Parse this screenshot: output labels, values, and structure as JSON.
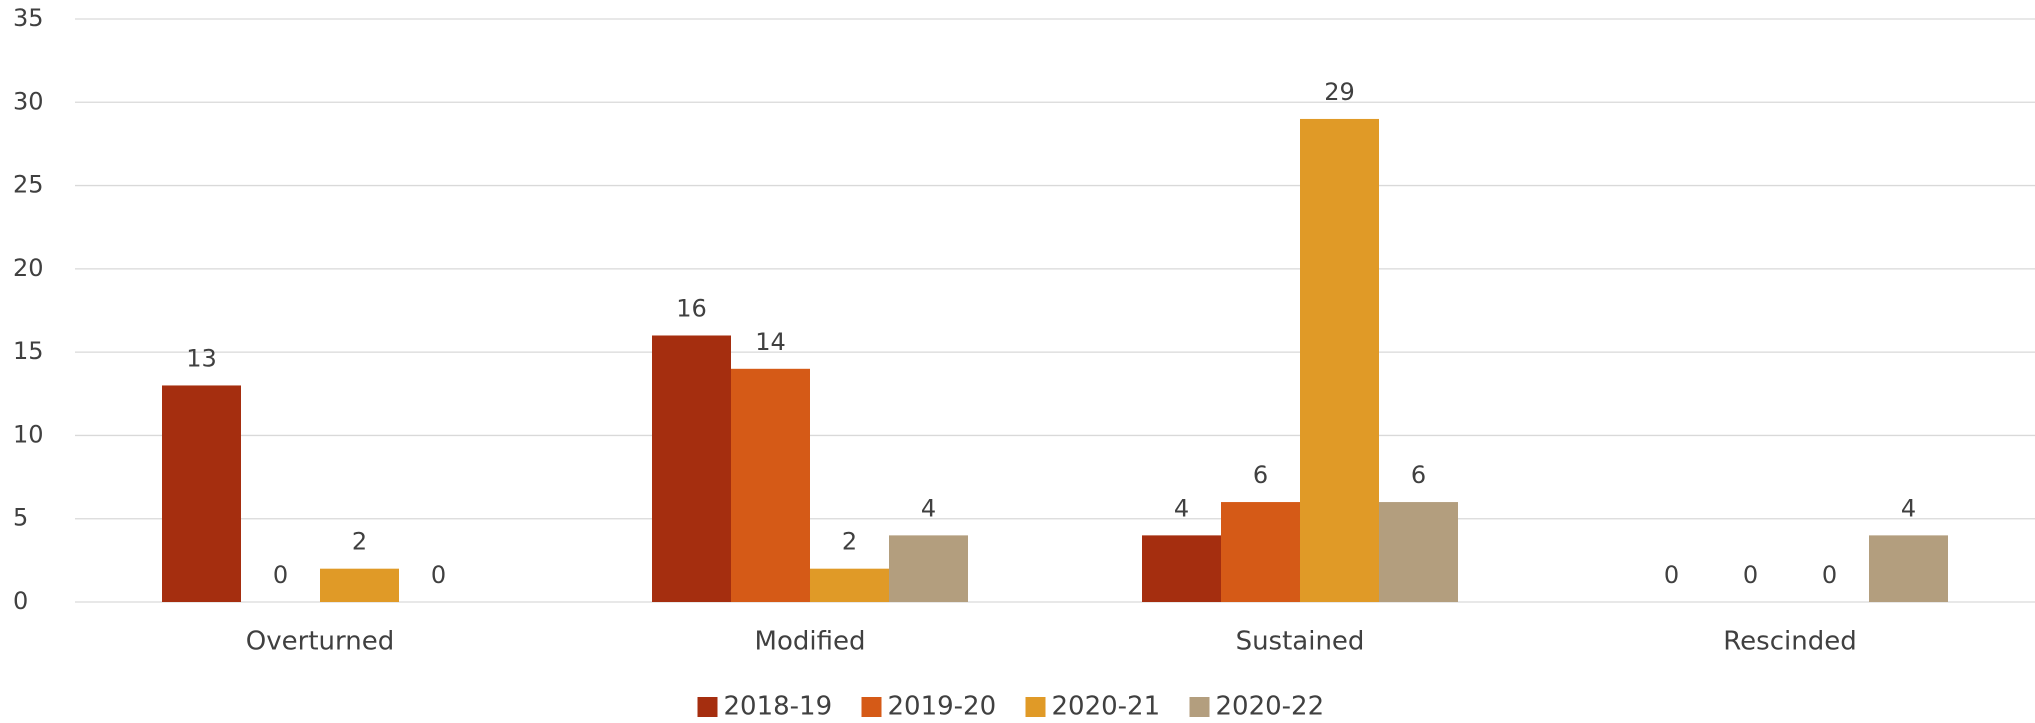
{
  "chart_data": {
    "type": "bar",
    "categories": [
      "Overturned",
      "Modified",
      "Sustained",
      "Rescinded"
    ],
    "series": [
      {
        "name": "2018-19",
        "color": "#a52e0f",
        "values": [
          13,
          16,
          4,
          0
        ]
      },
      {
        "name": "2019-20",
        "color": "#d55a17",
        "values": [
          0,
          14,
          6,
          0
        ]
      },
      {
        "name": "2020-21",
        "color": "#e09a27",
        "values": [
          2,
          2,
          29,
          0
        ]
      },
      {
        "name": "2020-22",
        "color": "#b39e7e",
        "values": [
          0,
          4,
          6,
          4
        ]
      }
    ],
    "ylim": [
      0,
      35
    ],
    "yticks": [
      0,
      5,
      10,
      15,
      20,
      25,
      30,
      35
    ],
    "grid": true,
    "legend": "bottom"
  }
}
